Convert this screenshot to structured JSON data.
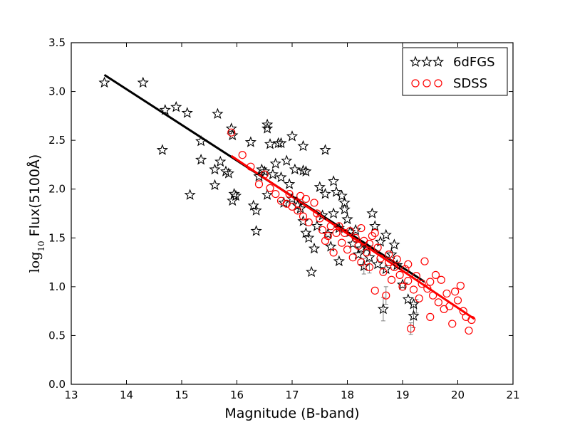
{
  "chart_data": {
    "type": "scatter",
    "title": "",
    "xlabel": "Magnitude (B-band)",
    "ylabel_prefix": "log",
    "ylabel_sub": "10",
    "ylabel_main": "Flux(5100Å)",
    "xlim": [
      13,
      21
    ],
    "ylim": [
      0.0,
      3.5
    ],
    "x_ticks": [
      13,
      14,
      15,
      16,
      17,
      18,
      19,
      20,
      21
    ],
    "x_tick_labels": [
      "13",
      "14",
      "15",
      "16",
      "17",
      "18",
      "19",
      "20",
      "21"
    ],
    "y_ticks": [
      0.0,
      0.5,
      1.0,
      1.5,
      2.0,
      2.5,
      3.0,
      3.5
    ],
    "y_tick_labels": [
      "0.0",
      "0.5",
      "1.0",
      "1.5",
      "2.0",
      "2.5",
      "3.0",
      "3.5"
    ],
    "grid": false,
    "legend_position": "top-right",
    "colors": {
      "sixdf": "#000000",
      "sdss": "#ff0000",
      "errorbar": "#808080"
    },
    "series": [
      {
        "name": "6dFGS",
        "marker": "star",
        "color": "#000000",
        "points": [
          [
            13.6,
            3.09
          ],
          [
            14.3,
            3.09
          ],
          [
            14.7,
            2.81
          ],
          [
            14.9,
            2.84
          ],
          [
            15.1,
            2.78
          ],
          [
            14.65,
            2.4
          ],
          [
            15.15,
            1.94
          ],
          [
            15.35,
            2.49
          ],
          [
            15.35,
            2.3
          ],
          [
            15.6,
            2.04
          ],
          [
            15.6,
            2.2
          ],
          [
            15.65,
            2.77
          ],
          [
            15.7,
            2.28
          ],
          [
            15.8,
            2.18
          ],
          [
            15.85,
            2.16
          ],
          [
            15.9,
            2.62
          ],
          [
            15.92,
            2.55
          ],
          [
            15.95,
            1.95
          ],
          [
            15.98,
            1.93
          ],
          [
            15.92,
            1.88
          ],
          [
            16.25,
            2.48
          ],
          [
            16.3,
            1.83
          ],
          [
            16.35,
            1.78
          ],
          [
            16.35,
            1.57
          ],
          [
            16.45,
            2.2
          ],
          [
            16.55,
            2.62
          ],
          [
            16.55,
            2.66
          ],
          [
            16.6,
            2.46
          ],
          [
            16.65,
            2.15
          ],
          [
            16.7,
            2.26
          ],
          [
            16.75,
            2.47
          ],
          [
            16.8,
            2.47
          ],
          [
            16.8,
            2.12
          ],
          [
            16.9,
            2.29
          ],
          [
            17.0,
            2.54
          ],
          [
            17.05,
            2.2
          ],
          [
            17.2,
            2.44
          ],
          [
            17.2,
            2.19
          ],
          [
            17.25,
            2.18
          ],
          [
            17.3,
            1.5
          ],
          [
            17.35,
            1.15
          ],
          [
            17.4,
            1.39
          ],
          [
            17.5,
            2.02
          ],
          [
            17.55,
            1.73
          ],
          [
            17.6,
            2.4
          ],
          [
            17.7,
            1.41
          ],
          [
            17.75,
            2.08
          ],
          [
            17.8,
            1.97
          ],
          [
            17.85,
            1.6
          ],
          [
            17.85,
            1.26
          ],
          [
            17.9,
            1.93
          ],
          [
            17.95,
            1.86
          ],
          [
            17.95,
            1.79
          ],
          [
            18.0,
            1.69
          ],
          [
            18.05,
            1.56
          ],
          [
            18.1,
            1.44
          ],
          [
            18.2,
            1.33
          ],
          [
            18.3,
            1.21
          ],
          [
            18.4,
            1.3
          ],
          [
            18.45,
            1.75
          ],
          [
            18.5,
            1.62
          ],
          [
            18.55,
            1.23
          ],
          [
            18.6,
            1.46
          ],
          [
            18.65,
            0.77
          ],
          [
            18.7,
            1.18
          ],
          [
            18.8,
            1.33
          ],
          [
            18.85,
            1.43
          ],
          [
            18.9,
            1.22
          ],
          [
            19.0,
            1.02
          ],
          [
            19.1,
            0.87
          ],
          [
            19.2,
            0.82
          ],
          [
            19.2,
            0.7
          ],
          [
            17.1,
            1.83
          ],
          [
            17.2,
            1.67
          ],
          [
            17.0,
            1.9
          ],
          [
            16.85,
            1.86
          ],
          [
            17.45,
            1.62
          ],
          [
            17.65,
            1.54
          ],
          [
            18.15,
            1.58
          ],
          [
            18.25,
            1.39
          ],
          [
            16.5,
            2.18
          ],
          [
            16.4,
            2.13
          ],
          [
            16.55,
            1.94
          ],
          [
            17.25,
            1.55
          ],
          [
            17.6,
            1.95
          ],
          [
            18.35,
            1.4
          ],
          [
            18.7,
            1.53
          ],
          [
            16.95,
            2.05
          ],
          [
            17.15,
            1.8
          ],
          [
            17.75,
            1.75
          ]
        ],
        "fit": [
          [
            13.6,
            3.17
          ],
          [
            19.4,
            1.05
          ]
        ]
      },
      {
        "name": "SDSS",
        "marker": "open-circle",
        "color": "#ff0000",
        "points": [
          [
            15.9,
            2.58
          ],
          [
            16.1,
            2.35
          ],
          [
            16.25,
            2.23
          ],
          [
            16.4,
            2.05
          ],
          [
            16.5,
            2.15
          ],
          [
            16.6,
            2.01
          ],
          [
            16.7,
            1.95
          ],
          [
            16.8,
            1.88
          ],
          [
            16.9,
            1.85
          ],
          [
            17.0,
            1.82
          ],
          [
            17.1,
            1.78
          ],
          [
            17.2,
            1.72
          ],
          [
            17.3,
            1.66
          ],
          [
            17.4,
            1.86
          ],
          [
            17.5,
            1.7
          ],
          [
            17.55,
            1.58
          ],
          [
            17.6,
            1.47
          ],
          [
            17.65,
            1.52
          ],
          [
            17.7,
            1.62
          ],
          [
            17.75,
            1.35
          ],
          [
            17.8,
            1.55
          ],
          [
            17.9,
            1.45
          ],
          [
            17.95,
            1.55
          ],
          [
            18.0,
            1.38
          ],
          [
            18.1,
            1.3
          ],
          [
            18.15,
            1.5
          ],
          [
            18.2,
            1.42
          ],
          [
            18.25,
            1.25
          ],
          [
            18.3,
            1.47
          ],
          [
            18.35,
            1.35
          ],
          [
            18.4,
            1.2
          ],
          [
            18.45,
            1.52
          ],
          [
            18.5,
            0.96
          ],
          [
            18.55,
            1.4
          ],
          [
            18.6,
            1.29
          ],
          [
            18.65,
            1.15
          ],
          [
            18.7,
            0.91
          ],
          [
            18.75,
            1.33
          ],
          [
            18.8,
            1.07
          ],
          [
            18.85,
            1.2
          ],
          [
            18.9,
            1.28
          ],
          [
            18.95,
            1.12
          ],
          [
            19.0,
            1.0
          ],
          [
            19.05,
            1.18
          ],
          [
            19.1,
            1.06
          ],
          [
            19.15,
            0.57
          ],
          [
            19.2,
            0.97
          ],
          [
            19.25,
            1.11
          ],
          [
            19.3,
            0.88
          ],
          [
            19.35,
            1.03
          ],
          [
            19.4,
            1.26
          ],
          [
            19.45,
            0.98
          ],
          [
            19.5,
            0.69
          ],
          [
            19.55,
            0.91
          ],
          [
            19.6,
            1.12
          ],
          [
            19.65,
            0.84
          ],
          [
            19.7,
            1.07
          ],
          [
            19.75,
            0.77
          ],
          [
            19.8,
            0.93
          ],
          [
            19.85,
            0.8
          ],
          [
            19.9,
            0.62
          ],
          [
            19.95,
            0.95
          ],
          [
            20.0,
            0.86
          ],
          [
            20.05,
            1.01
          ],
          [
            20.1,
            0.75
          ],
          [
            20.15,
            0.69
          ],
          [
            20.2,
            0.55
          ],
          [
            20.25,
            0.66
          ],
          [
            17.25,
            1.9
          ],
          [
            17.45,
            1.75
          ],
          [
            17.85,
            1.62
          ],
          [
            18.05,
            1.57
          ],
          [
            18.5,
            1.55
          ],
          [
            18.75,
            1.25
          ],
          [
            19.1,
            1.23
          ],
          [
            16.95,
            1.95
          ],
          [
            17.15,
            1.93
          ],
          [
            18.4,
            1.44
          ],
          [
            19.5,
            1.05
          ],
          [
            18.25,
            1.6
          ]
        ],
        "fit": [
          [
            15.9,
            2.34
          ],
          [
            20.3,
            0.67
          ]
        ]
      }
    ],
    "errorbar_points": [
      [
        18.65,
        0.77,
        0.12
      ],
      [
        19.2,
        0.7,
        0.12
      ],
      [
        18.3,
        1.21,
        0.08
      ],
      [
        18.7,
        0.91,
        0.09
      ],
      [
        19.15,
        0.57,
        0.06
      ],
      [
        19.25,
        0.8,
        0.07
      ],
      [
        18.4,
        1.2,
        0.06
      ]
    ]
  }
}
